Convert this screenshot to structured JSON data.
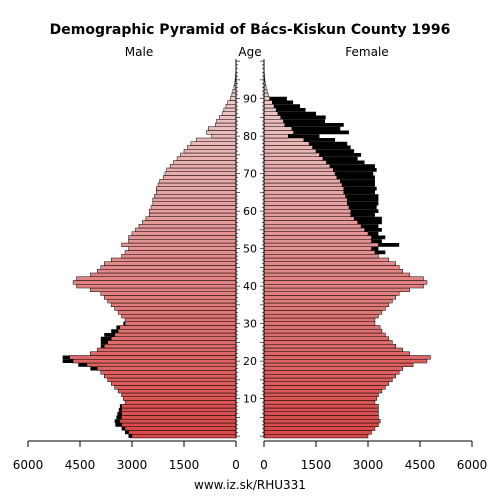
{
  "chart_data": {
    "type": "bar",
    "title": "Demographic Pyramid of Bács-Kiskun County 1996",
    "left_label": "Male",
    "center_label": "Age",
    "right_label": "Female",
    "source": "www.iz.sk/RHU331",
    "x_ticks": [
      "6000",
      "4500",
      "3000",
      "1500",
      "0",
      "0",
      "1500",
      "3000",
      "4500",
      "6000"
    ],
    "x_range": [
      0,
      6000
    ],
    "age_ticks": [
      10,
      20,
      30,
      40,
      50,
      60,
      70,
      80,
      90
    ],
    "ages": [
      0,
      1,
      2,
      3,
      4,
      5,
      6,
      7,
      8,
      9,
      10,
      11,
      12,
      13,
      14,
      15,
      16,
      17,
      18,
      19,
      20,
      21,
      22,
      23,
      24,
      25,
      26,
      27,
      28,
      29,
      30,
      31,
      32,
      33,
      34,
      35,
      36,
      37,
      38,
      39,
      40,
      41,
      42,
      43,
      44,
      45,
      46,
      47,
      48,
      49,
      50,
      51,
      52,
      53,
      54,
      55,
      56,
      57,
      58,
      59,
      60,
      61,
      62,
      63,
      64,
      65,
      66,
      67,
      68,
      69,
      70,
      71,
      72,
      73,
      74,
      75,
      76,
      77,
      78,
      79,
      80,
      81,
      82,
      83,
      84,
      85,
      86,
      87,
      88,
      89,
      90,
      91,
      92,
      93,
      94,
      95,
      96,
      97,
      98,
      99,
      100
    ],
    "series": [
      {
        "name": "Male",
        "values": [
          3000,
          3100,
          3200,
          3300,
          3350,
          3300,
          3300,
          3300,
          3300,
          3200,
          3250,
          3300,
          3400,
          3500,
          3600,
          3700,
          3800,
          3900,
          4000,
          4300,
          4700,
          4800,
          4200,
          4000,
          3800,
          3700,
          3600,
          3500,
          3400,
          3350,
          3200,
          3200,
          3300,
          3400,
          3500,
          3600,
          3700,
          3800,
          3900,
          4200,
          4600,
          4700,
          4600,
          4200,
          4000,
          3900,
          3800,
          3600,
          3300,
          3200,
          3100,
          3300,
          3100,
          3100,
          3000,
          2900,
          2800,
          2700,
          2600,
          2500,
          2500,
          2450,
          2400,
          2400,
          2350,
          2300,
          2300,
          2250,
          2200,
          2100,
          2050,
          2000,
          1900,
          1800,
          1700,
          1600,
          1500,
          1400,
          1300,
          1150,
          700,
          850,
          800,
          600,
          560,
          480,
          400,
          350,
          290,
          240,
          160,
          120,
          90,
          60,
          40,
          25,
          15,
          8,
          5,
          2,
          1
        ]
      },
      {
        "name": "Female",
        "values": [
          3000,
          3100,
          3200,
          3300,
          3350,
          3300,
          3300,
          3300,
          3300,
          3200,
          3250,
          3300,
          3400,
          3500,
          3600,
          3700,
          3800,
          3900,
          4000,
          4300,
          4700,
          4800,
          4200,
          4000,
          3800,
          3700,
          3600,
          3500,
          3400,
          3350,
          3200,
          3200,
          3300,
          3400,
          3500,
          3600,
          3700,
          3800,
          3900,
          4200,
          4600,
          4700,
          4600,
          4200,
          4000,
          3900,
          3800,
          3600,
          3300,
          3200,
          3100,
          3300,
          3100,
          3100,
          3000,
          2900,
          2800,
          2700,
          2600,
          2500,
          2500,
          2450,
          2400,
          2400,
          2350,
          2300,
          2300,
          2250,
          2200,
          2100,
          2050,
          2000,
          1900,
          1800,
          1700,
          1600,
          1500,
          1400,
          1300,
          1150,
          700,
          850,
          800,
          600,
          560,
          480,
          400,
          350,
          290,
          240,
          160,
          120,
          90,
          60,
          40,
          25,
          15,
          8,
          5,
          2,
          1
        ]
      },
      {
        "name": "Male excess",
        "values": [
          100,
          100,
          100,
          180,
          150,
          150,
          120,
          80,
          50,
          0,
          0,
          0,
          0,
          0,
          0,
          0,
          0,
          0,
          200,
          250,
          300,
          200,
          0,
          0,
          100,
          200,
          300,
          300,
          200,
          100,
          50,
          0,
          0,
          0,
          0,
          0,
          0,
          0,
          0,
          0,
          0,
          0,
          0,
          0,
          0,
          0,
          0,
          0,
          0,
          0,
          0,
          0,
          0,
          0,
          0,
          0,
          0,
          0,
          0,
          0,
          0,
          0,
          0,
          0,
          0,
          0,
          0,
          0,
          0,
          0,
          0,
          0,
          0,
          0,
          0,
          0,
          0,
          0,
          0,
          0,
          0,
          0,
          0,
          0,
          0,
          0,
          0,
          0,
          0,
          0,
          0,
          0,
          0,
          0,
          0,
          0,
          0,
          0,
          0,
          0,
          0
        ]
      },
      {
        "name": "Female excess",
        "values": [
          0,
          0,
          0,
          0,
          0,
          0,
          0,
          0,
          0,
          0,
          0,
          0,
          0,
          0,
          0,
          0,
          0,
          0,
          0,
          0,
          0,
          0,
          0,
          0,
          0,
          0,
          0,
          0,
          0,
          0,
          0,
          0,
          0,
          0,
          0,
          0,
          0,
          0,
          0,
          0,
          0,
          0,
          0,
          0,
          0,
          0,
          0,
          0,
          0,
          300,
          200,
          600,
          300,
          400,
          300,
          500,
          500,
          700,
          800,
          700,
          800,
          800,
          900,
          900,
          950,
          900,
          950,
          950,
          1000,
          1100,
          1100,
          1250,
          1300,
          1100,
          1000,
          1200,
          1100,
          1100,
          1100,
          900,
          900,
          1600,
          1400,
          1700,
          1200,
          1300,
          1100,
          850,
          750,
          600,
          500,
          0,
          0,
          0,
          0,
          0,
          0,
          0,
          0,
          0,
          0
        ]
      }
    ],
    "colors": {
      "bar_young": "#d94848",
      "bar_old": "#f0d6d6",
      "excess": "#000000",
      "outline": "#000000"
    }
  }
}
